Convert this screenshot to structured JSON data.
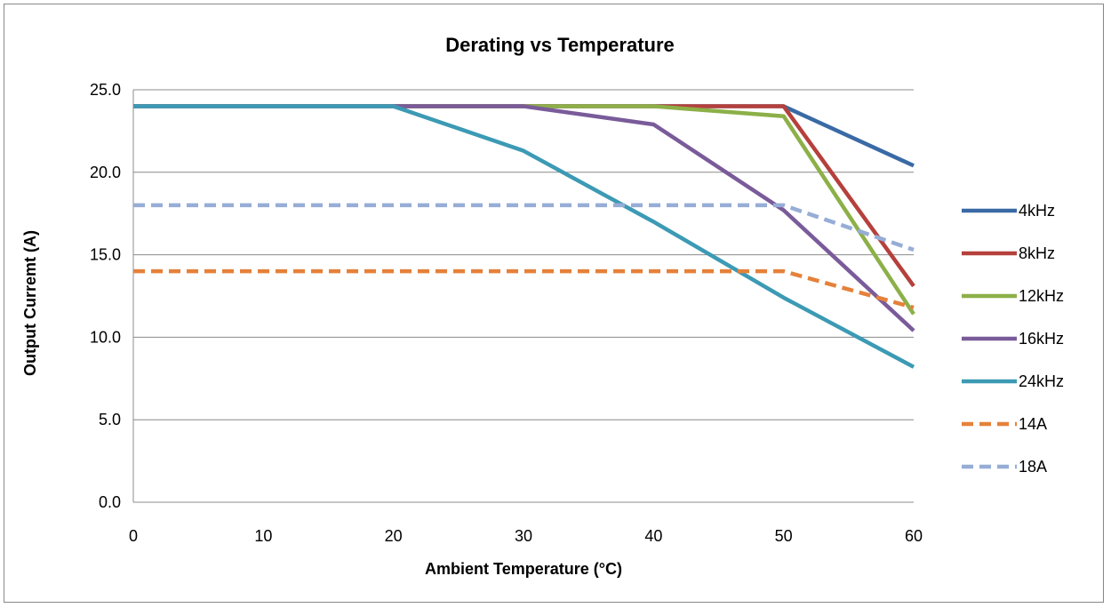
{
  "chart_data": {
    "type": "line",
    "title": "Derating vs Temperature",
    "xlabel": "Ambient Temperature (°C)",
    "ylabel": "Output Curremt (A)",
    "x": [
      0,
      10,
      20,
      30,
      40,
      50,
      60
    ],
    "xlim": [
      0,
      60
    ],
    "ylim": [
      0,
      25
    ],
    "x_ticks": [
      "0",
      "10",
      "20",
      "30",
      "40",
      "50",
      "60"
    ],
    "y_ticks": [
      "0.0",
      "5.0",
      "10.0",
      "15.0",
      "20.0",
      "25.0"
    ],
    "grid": "horizontal",
    "legend_position": "right",
    "series": [
      {
        "name": "4kHz",
        "color": "#3A6AA5",
        "dash": false,
        "values": [
          24,
          24,
          24,
          24,
          24,
          24,
          20.4
        ]
      },
      {
        "name": "8kHz",
        "color": "#B5403C",
        "dash": false,
        "values": [
          24,
          24,
          24,
          24,
          24,
          24,
          13.1
        ]
      },
      {
        "name": "12kHz",
        "color": "#8CB048",
        "dash": false,
        "values": [
          24,
          24,
          24,
          24,
          24,
          23.4,
          11.4
        ]
      },
      {
        "name": "16kHz",
        "color": "#7A5B9A",
        "dash": false,
        "values": [
          24,
          24,
          24,
          24,
          22.9,
          17.7,
          10.4
        ]
      },
      {
        "name": "24kHz",
        "color": "#3C9AB4",
        "dash": false,
        "values": [
          24,
          24,
          24,
          21.3,
          17,
          12.4,
          8.2
        ]
      },
      {
        "name": "14A",
        "color": "#E5813A",
        "dash": true,
        "values": [
          14,
          14,
          14,
          14,
          14,
          14,
          11.8
        ]
      },
      {
        "name": "18A",
        "color": "#96ADD6",
        "dash": true,
        "values": [
          18,
          18,
          18,
          18,
          18,
          18,
          15.3
        ]
      }
    ]
  }
}
